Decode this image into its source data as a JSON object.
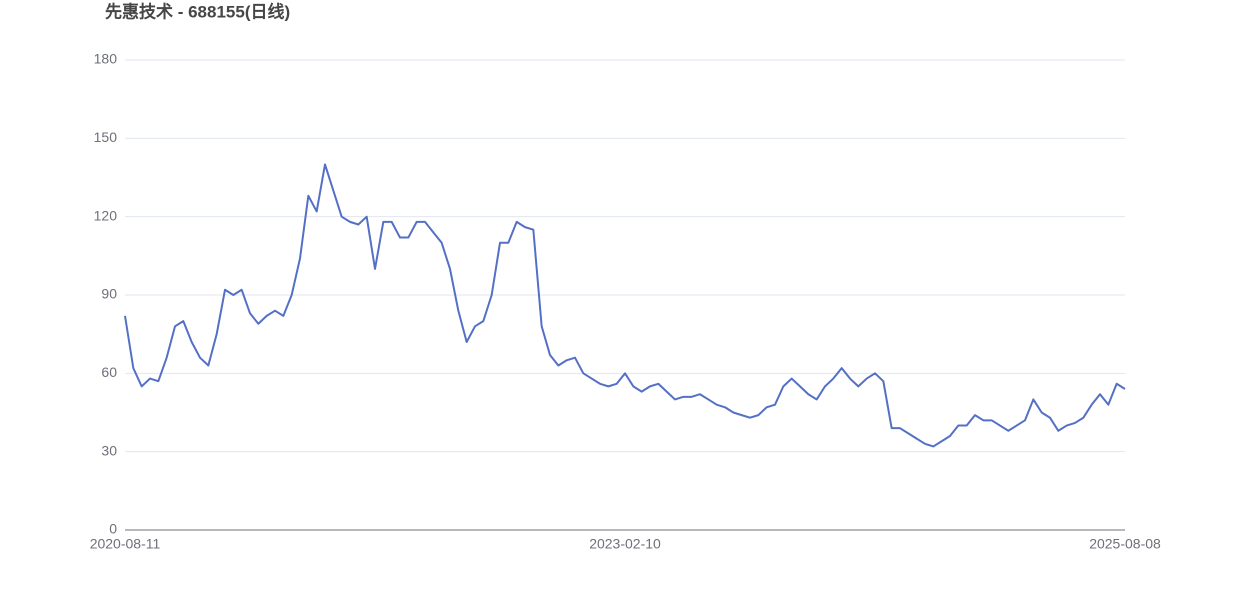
{
  "chart_data": {
    "type": "line",
    "title": "先惠技术 - 688155(日线)",
    "categories": [
      "2020-08-11",
      null,
      null,
      null,
      null,
      null,
      null,
      null,
      null,
      null,
      null,
      null,
      null,
      null,
      null,
      null,
      null,
      null,
      null,
      null,
      null,
      null,
      null,
      null,
      null,
      null,
      null,
      null,
      null,
      null,
      null,
      null,
      null,
      null,
      null,
      null,
      null,
      null,
      null,
      null,
      null,
      null,
      null,
      null,
      null,
      null,
      null,
      null,
      null,
      null,
      null,
      null,
      null,
      null,
      null,
      null,
      null,
      null,
      null,
      null,
      "2023-02-10",
      null,
      null,
      null,
      null,
      null,
      null,
      null,
      null,
      null,
      null,
      null,
      null,
      null,
      null,
      null,
      null,
      null,
      null,
      null,
      null,
      null,
      null,
      null,
      null,
      null,
      null,
      null,
      null,
      null,
      null,
      null,
      null,
      null,
      null,
      null,
      null,
      null,
      null,
      null,
      null,
      null,
      null,
      null,
      null,
      null,
      null,
      null,
      null,
      null,
      null,
      null,
      null,
      null,
      null,
      null,
      null,
      null,
      null,
      null,
      "2025-08-08"
    ],
    "values": [
      82,
      62,
      55,
      58,
      57,
      66,
      78,
      80,
      72,
      66,
      63,
      75,
      92,
      90,
      92,
      83,
      79,
      82,
      84,
      82,
      90,
      104,
      128,
      122,
      140,
      130,
      120,
      118,
      117,
      120,
      100,
      118,
      118,
      112,
      112,
      118,
      118,
      114,
      110,
      100,
      84,
      72,
      78,
      80,
      90,
      110,
      110,
      118,
      116,
      115,
      78,
      67,
      63,
      65,
      66,
      60,
      58,
      56,
      55,
      56,
      60,
      55,
      53,
      55,
      56,
      53,
      50,
      51,
      51,
      52,
      50,
      48,
      47,
      45,
      44,
      43,
      44,
      47,
      48,
      55,
      58,
      55,
      52,
      50,
      55,
      58,
      62,
      58,
      55,
      58,
      60,
      57,
      39,
      39,
      37,
      35,
      33,
      32,
      34,
      36,
      40,
      40,
      44,
      42,
      42,
      40,
      38,
      40,
      42,
      50,
      45,
      43,
      38,
      40,
      41,
      43,
      48,
      52,
      48,
      56,
      54
    ],
    "color": "#5470c6",
    "ylim": [
      0,
      180
    ],
    "yticks": [
      0,
      30,
      60,
      90,
      120,
      150,
      180
    ],
    "grid": true
  }
}
